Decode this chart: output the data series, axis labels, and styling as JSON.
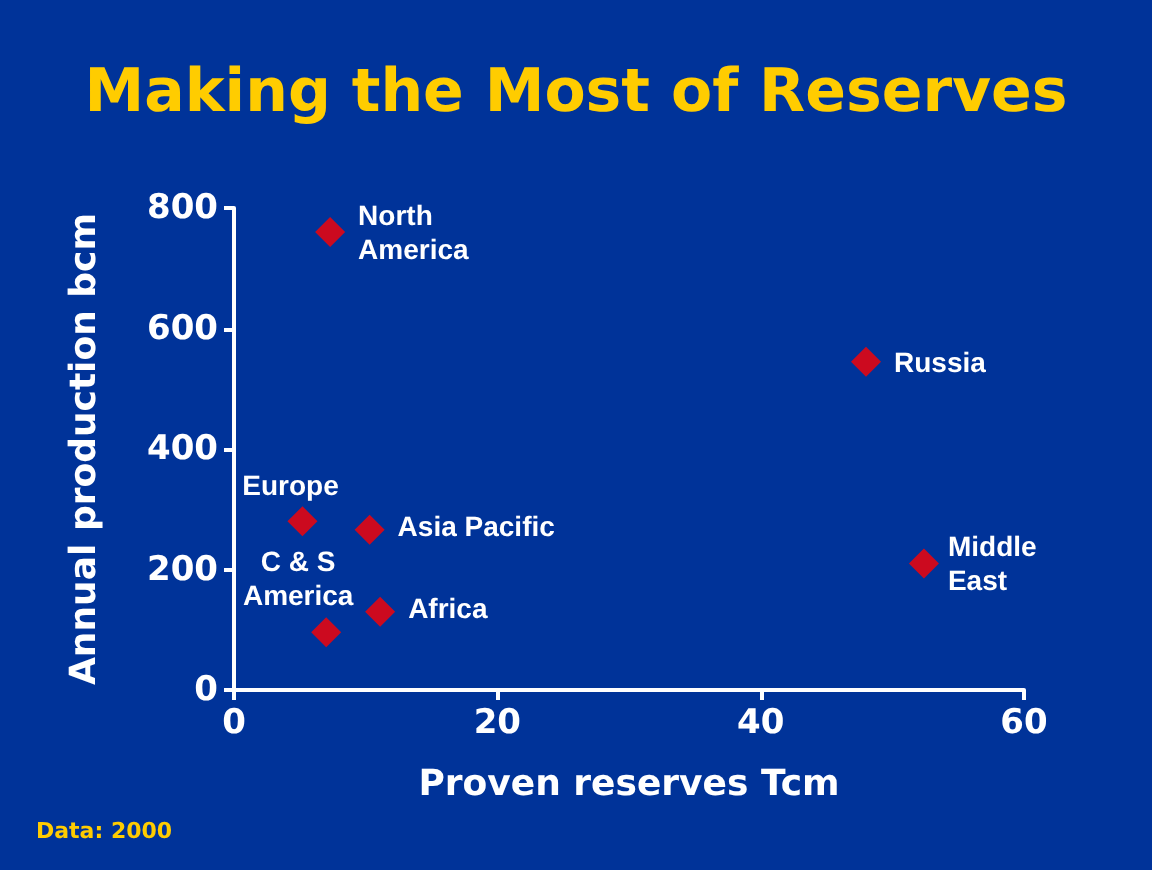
{
  "chart_data": {
    "type": "scatter",
    "title": "Making the Most of Reserves",
    "xlabel": "Proven reserves Tcm",
    "ylabel": "Annual production bcm",
    "x": [
      7.3,
      48.0,
      5.2,
      10.3,
      52.4,
      11.1,
      7.0
    ],
    "values": [
      760,
      545,
      280,
      266,
      210,
      130,
      96
    ],
    "color": "#ff0000",
    "marker": "diamond",
    "xlim": [
      0,
      60
    ],
    "xticks": [
      0,
      20,
      40,
      60
    ],
    "ylim": [
      0,
      800
    ],
    "yticks": [
      0,
      200,
      400,
      600,
      800
    ],
    "grid": false,
    "annotations": [
      {
        "text": "North\nAmerica",
        "x": 7.3,
        "y": 760
      },
      {
        "text": "Russia",
        "x": 48.0,
        "y": 545
      },
      {
        "text": "Europe",
        "x": 5.2,
        "y": 280
      },
      {
        "text": "Asia Pacific",
        "x": 10.3,
        "y": 266
      },
      {
        "text": "Middle\nEast",
        "x": 52.4,
        "y": 210
      },
      {
        "text": "Africa",
        "x": 11.1,
        "y": 130
      },
      {
        "text": "C & S\nAmerica",
        "x": 7.0,
        "y": 96
      },
      "Data: 2000"
    ]
  }
}
